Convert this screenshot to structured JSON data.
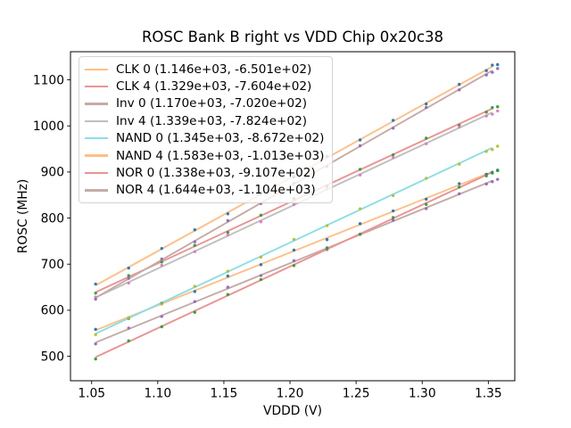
{
  "chart_data": {
    "type": "scatter",
    "title": "ROSC Bank B right vs VDD Chip 0x20c38",
    "xlabel": "VDDD (V)",
    "ylabel": "ROSC (MHz)",
    "xlim": [
      1.034,
      1.37
    ],
    "ylim": [
      447,
      1161
    ],
    "x_ticks": [
      "1.05",
      "1.10",
      "1.15",
      "1.20",
      "1.25",
      "1.30",
      "1.35"
    ],
    "x_tick_values": [
      1.05,
      1.1,
      1.15,
      1.2,
      1.25,
      1.3,
      1.35
    ],
    "y_ticks": [
      "500",
      "600",
      "700",
      "800",
      "900",
      "1000",
      "1100"
    ],
    "y_tick_values": [
      500,
      600,
      700,
      800,
      900,
      1000,
      1100
    ],
    "grid": false,
    "legend_position": "upper left",
    "x": [
      1.053,
      1.078,
      1.103,
      1.128,
      1.153,
      1.178,
      1.203,
      1.228,
      1.253,
      1.278,
      1.303,
      1.328,
      1.353
    ],
    "extra_x": [
      1.3485,
      1.357
    ],
    "series": [
      {
        "name": "CLK 0",
        "legend_label": "CLK 0 (1.146e+03, -6.501e+02)",
        "fit": {
          "slope": 1146.0,
          "intercept": -650.1
        },
        "marker_color": "#1f77b4",
        "line_color": "#ffbf86",
        "y": [
          558.6,
          582.3,
          614.9,
          640.6,
          674.2,
          698.9,
          730.5,
          753.2,
          787.8,
          815.5,
          841.1,
          874.8,
          899.4
        ],
        "extra_y": [
          895.0,
          904.0
        ]
      },
      {
        "name": "CLK 4",
        "legend_label": "CLK 4 (1.329e+03, -7.604e+02)",
        "fit": {
          "slope": 1329.0,
          "intercept": -760.4
        },
        "marker_color": "#2ca02c",
        "line_color": "#eb9393",
        "y": [
          637.0,
          675.3,
          704.5,
          740.7,
          768.9,
          806.2,
          842.4,
          869.6,
          905.8,
          937.1,
          973.3,
          1001.5,
          1039.7
        ],
        "extra_y": [
          1030.0,
          1041.5
        ]
      },
      {
        "name": "Inv 0",
        "legend_label": "Inv 0 (1.170e+03, -7.020e+02)",
        "fit": {
          "slope": 1170.0,
          "intercept": -702.0
        },
        "marker_color": "#9467bd",
        "line_color": "#c5aba5",
        "y": [
          527.0,
          561.3,
          586.5,
          618.8,
          650.0,
          675.3,
          707.5,
          731.8,
          765.0,
          795.3,
          820.5,
          852.8,
          879.0
        ],
        "extra_y": [
          874.0,
          884.0
        ]
      },
      {
        "name": "Inv 4",
        "legend_label": "Inv 4 (1.339e+03, -7.824e+02)",
        "fit": {
          "slope": 1339.0,
          "intercept": -782.4
        },
        "marker_color": "#e377c2",
        "line_color": "#bfbfbf",
        "y": [
          628.6,
          659.0,
          697.5,
          727.0,
          763.5,
          791.9,
          829.4,
          863.9,
          893.4,
          931.8,
          961.3,
          997.8,
          1025.3
        ],
        "extra_y": [
          1021.5,
          1032.5
        ]
      },
      {
        "name": "NAND 0",
        "legend_label": "NAND 0 (1.345e+03, -8.672e+02)",
        "fit": {
          "slope": 1345.0,
          "intercept": -867.2
        },
        "marker_color": "#bcbd22",
        "line_color": "#8bdee7",
        "y": [
          547.1,
          583.7,
          613.3,
          652.0,
          684.6,
          715.2,
          753.8,
          783.5,
          820.1,
          848.7,
          886.3,
          917.0,
          948.6
        ],
        "extra_y": [
          944.5,
          956.0
        ]
      },
      {
        "name": "NAND 4",
        "legend_label": "NAND 4 (1.583e+03, -1.013e+03)",
        "fit": {
          "slope": 1583.0,
          "intercept": -1013.0
        },
        "marker_color": "#1f77b4",
        "line_color": "#ffbf86",
        "y": [
          656.9,
          691.5,
          734.0,
          774.6,
          809.2,
          852.8,
          889.3,
          933.9,
          969.5,
          1012.1,
          1047.6,
          1090.2,
          1131.8
        ],
        "extra_y": [
          1120.0,
          1133.0
        ]
      },
      {
        "name": "NOR 0",
        "legend_label": "NOR 0 (1.338e+03, -9.107e+02)",
        "fit": {
          "slope": 1338.0,
          "intercept": -910.7
        },
        "marker_color": "#2ca02c",
        "line_color": "#eb9393",
        "y": [
          494.2,
          533.7,
          564.1,
          595.6,
          634.0,
          666.5,
          696.9,
          735.4,
          764.8,
          801.3,
          829.7,
          867.2,
          897.6
        ],
        "extra_y": [
          891.5,
          903.0
        ]
      },
      {
        "name": "NOR 4",
        "legend_label": "NOR 4 (1.644e+03, -1.104e+03)",
        "fit": {
          "slope": 1644.0,
          "intercept": -1104.0
        },
        "marker_color": "#9467bd",
        "line_color": "#c5aba5",
        "y": [
          624.1,
          669.2,
          711.3,
          748.4,
          794.5,
          831.6,
          875.7,
          911.8,
          956.9,
          995.0,
          1040.1,
          1078.2,
          1116.3
        ],
        "extra_y": [
          1110.5,
          1124.5
        ]
      }
    ]
  }
}
